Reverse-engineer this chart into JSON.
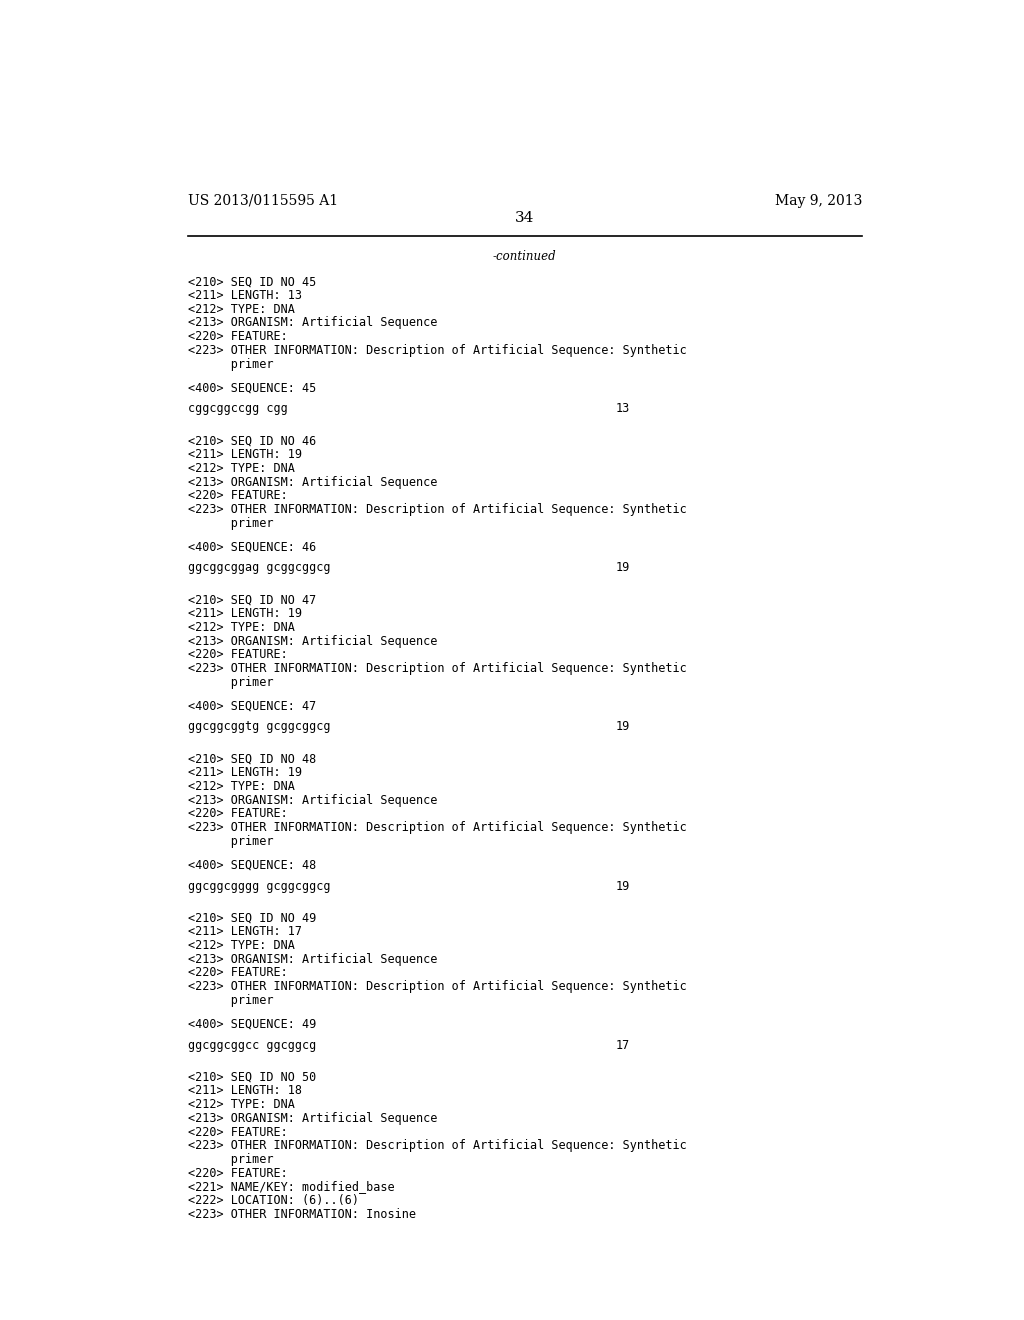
{
  "background_color": "#ffffff",
  "header_left": "US 2013/0115595 A1",
  "header_right": "May 9, 2013",
  "page_number": "34",
  "continued_text": "-continued",
  "content_font_size": 8.5,
  "mono_font_size": 8.5,
  "header_font_size": 10,
  "page_num_font_size": 11,
  "sections": [
    {
      "lines": [
        "<210> SEQ ID NO 45",
        "<211> LENGTH: 13",
        "<212> TYPE: DNA",
        "<213> ORGANISM: Artificial Sequence",
        "<220> FEATURE:",
        "<223> OTHER INFORMATION: Description of Artificial Sequence: Synthetic",
        "      primer"
      ],
      "sequence_label": "<400> SEQUENCE: 45",
      "sequence": "cggcggccgg cgg",
      "seq_number": "13"
    },
    {
      "lines": [
        "<210> SEQ ID NO 46",
        "<211> LENGTH: 19",
        "<212> TYPE: DNA",
        "<213> ORGANISM: Artificial Sequence",
        "<220> FEATURE:",
        "<223> OTHER INFORMATION: Description of Artificial Sequence: Synthetic",
        "      primer"
      ],
      "sequence_label": "<400> SEQUENCE: 46",
      "sequence": "ggcggcggag gcggcggcg",
      "seq_number": "19"
    },
    {
      "lines": [
        "<210> SEQ ID NO 47",
        "<211> LENGTH: 19",
        "<212> TYPE: DNA",
        "<213> ORGANISM: Artificial Sequence",
        "<220> FEATURE:",
        "<223> OTHER INFORMATION: Description of Artificial Sequence: Synthetic",
        "      primer"
      ],
      "sequence_label": "<400> SEQUENCE: 47",
      "sequence": "ggcggcggtg gcggcggcg",
      "seq_number": "19"
    },
    {
      "lines": [
        "<210> SEQ ID NO 48",
        "<211> LENGTH: 19",
        "<212> TYPE: DNA",
        "<213> ORGANISM: Artificial Sequence",
        "<220> FEATURE:",
        "<223> OTHER INFORMATION: Description of Artificial Sequence: Synthetic",
        "      primer"
      ],
      "sequence_label": "<400> SEQUENCE: 48",
      "sequence": "ggcggcgggg gcggcggcg",
      "seq_number": "19"
    },
    {
      "lines": [
        "<210> SEQ ID NO 49",
        "<211> LENGTH: 17",
        "<212> TYPE: DNA",
        "<213> ORGANISM: Artificial Sequence",
        "<220> FEATURE:",
        "<223> OTHER INFORMATION: Description of Artificial Sequence: Synthetic",
        "      primer"
      ],
      "sequence_label": "<400> SEQUENCE: 49",
      "sequence": "ggcggcggcc ggcggcg",
      "seq_number": "17"
    },
    {
      "lines": [
        "<210> SEQ ID NO 50",
        "<211> LENGTH: 18",
        "<212> TYPE: DNA",
        "<213> ORGANISM: Artificial Sequence",
        "<220> FEATURE:",
        "<223> OTHER INFORMATION: Description of Artificial Sequence: Synthetic",
        "      primer",
        "<220> FEATURE:",
        "<221> NAME/KEY: modified_base",
        "<222> LOCATION: (6)..(6)",
        "<223> OTHER INFORMATION: Inosine"
      ],
      "sequence_label": null,
      "sequence": null,
      "seq_number": null
    }
  ]
}
